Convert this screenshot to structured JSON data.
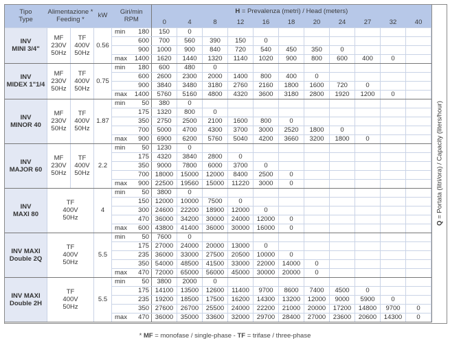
{
  "header": {
    "type_it": "Tipo",
    "type_en": "Type",
    "feeding_it": "Alimentazione *",
    "feeding_en": "Feeding *",
    "kw": "kW",
    "rpm_it": "Giri/min",
    "rpm_en": "RPM",
    "head_prefix": "H",
    "head_title": " = Prevalenza (metri) / Head (meters)",
    "heads": [
      "0",
      "4",
      "8",
      "12",
      "16",
      "18",
      "20",
      "24",
      "27",
      "32",
      "40"
    ]
  },
  "side_label": {
    "prefix": "Q",
    "text": " = Portata (litri/ora) / Capacity (liters/hour)"
  },
  "footnote": {
    "star": "* ",
    "mf": "MF",
    "mf_text": " = monofase / single-phase - ",
    "tf": "TF",
    "tf_text": " = trifase / three-phase"
  },
  "colors": {
    "header_bg": "#b7c8e8",
    "type_bg": "#e3e8f4"
  },
  "models": [
    {
      "name": [
        "INV",
        "MINI 3/4\""
      ],
      "mf": [
        "MF",
        "230V",
        "50Hz"
      ],
      "tf": [
        "TF",
        "400V",
        "50Hz"
      ],
      "kw": "0.56",
      "rows": [
        {
          "label": "min",
          "rpm": "180",
          "values": [
            "150",
            "0"
          ]
        },
        {
          "label": "",
          "rpm": "600",
          "values": [
            "700",
            "560",
            "390",
            "150",
            "0"
          ]
        },
        {
          "label": "",
          "rpm": "900",
          "values": [
            "1000",
            "900",
            "840",
            "720",
            "540",
            "450",
            "350",
            "0"
          ]
        },
        {
          "label": "max",
          "rpm": "1400",
          "values": [
            "1620",
            "1440",
            "1320",
            "1140",
            "1020",
            "900",
            "800",
            "600",
            "400",
            "0"
          ]
        }
      ]
    },
    {
      "name": [
        "INV",
        "MIDEX 1\"1/4"
      ],
      "mf": [
        "MF",
        "230V",
        "50Hz"
      ],
      "tf": [
        "TF",
        "400V",
        "50Hz"
      ],
      "kw": "0.75",
      "rows": [
        {
          "label": "min",
          "rpm": "180",
          "values": [
            "600",
            "480",
            "0"
          ]
        },
        {
          "label": "",
          "rpm": "600",
          "values": [
            "2600",
            "2300",
            "2000",
            "1400",
            "800",
            "400",
            "0"
          ]
        },
        {
          "label": "",
          "rpm": "900",
          "values": [
            "3840",
            "3480",
            "3180",
            "2760",
            "2160",
            "1800",
            "1600",
            "720",
            "0"
          ]
        },
        {
          "label": "max",
          "rpm": "1400",
          "values": [
            "5760",
            "5160",
            "4800",
            "4320",
            "3600",
            "3180",
            "2800",
            "1920",
            "1200",
            "0"
          ]
        }
      ]
    },
    {
      "name": [
        "INV",
        "MINOR 40"
      ],
      "mf": [
        "MF",
        "230V",
        "50Hz"
      ],
      "tf": [
        "TF",
        "400V",
        "50Hz"
      ],
      "kw": "1.87",
      "rows": [
        {
          "label": "min",
          "rpm": "50",
          "values": [
            "380",
            "0"
          ]
        },
        {
          "label": "",
          "rpm": "175",
          "values": [
            "1320",
            "800",
            "0"
          ]
        },
        {
          "label": "",
          "rpm": "350",
          "values": [
            "2750",
            "2500",
            "2100",
            "1600",
            "800",
            "0"
          ]
        },
        {
          "label": "",
          "rpm": "700",
          "values": [
            "5000",
            "4700",
            "4300",
            "3700",
            "3000",
            "2520",
            "1800",
            "0"
          ]
        },
        {
          "label": "max",
          "rpm": "900",
          "values": [
            "6900",
            "6200",
            "5760",
            "5040",
            "4200",
            "3660",
            "3200",
            "1800",
            "0"
          ]
        }
      ]
    },
    {
      "name": [
        "INV",
        "MAJOR 60"
      ],
      "mf": [
        "MF",
        "230V",
        "50Hz"
      ],
      "tf": [
        "TF",
        "400V",
        "50Hz"
      ],
      "kw": "2.2",
      "rows": [
        {
          "label": "min",
          "rpm": "50",
          "values": [
            "1230",
            "0"
          ]
        },
        {
          "label": "",
          "rpm": "175",
          "values": [
            "4320",
            "3840",
            "2800",
            "0"
          ]
        },
        {
          "label": "",
          "rpm": "350",
          "values": [
            "9000",
            "7800",
            "6000",
            "3700",
            "0"
          ]
        },
        {
          "label": "",
          "rpm": "700",
          "values": [
            "18000",
            "15000",
            "12000",
            "8400",
            "2500",
            "0"
          ]
        },
        {
          "label": "max",
          "rpm": "900",
          "values": [
            "22500",
            "19560",
            "15000",
            "11220",
            "3000",
            "0"
          ]
        }
      ]
    },
    {
      "name": [
        "INV",
        "MAXI 80"
      ],
      "mf": null,
      "tf": [
        "TF",
        "400V",
        "50Hz"
      ],
      "kw": "4",
      "rows": [
        {
          "label": "min",
          "rpm": "50",
          "values": [
            "3800",
            "0"
          ]
        },
        {
          "label": "",
          "rpm": "150",
          "values": [
            "12000",
            "10000",
            "7500",
            "0"
          ]
        },
        {
          "label": "",
          "rpm": "300",
          "values": [
            "24600",
            "22200",
            "18900",
            "12000",
            "0"
          ]
        },
        {
          "label": "",
          "rpm": "470",
          "values": [
            "36000",
            "34200",
            "30000",
            "24000",
            "12000",
            "0"
          ]
        },
        {
          "label": "max",
          "rpm": "600",
          "values": [
            "43800",
            "41400",
            "36000",
            "30000",
            "16000",
            "0"
          ]
        }
      ]
    },
    {
      "name": [
        "INV MAXI",
        "Double 2Q"
      ],
      "mf": null,
      "tf": [
        "TF",
        "400V",
        "50Hz"
      ],
      "kw": "5.5",
      "rows": [
        {
          "label": "min",
          "rpm": "50",
          "values": [
            "7600",
            "0"
          ]
        },
        {
          "label": "",
          "rpm": "175",
          "values": [
            "27000",
            "24000",
            "20000",
            "13000",
            "0"
          ]
        },
        {
          "label": "",
          "rpm": "235",
          "values": [
            "36000",
            "33000",
            "27500",
            "20500",
            "10000",
            "0"
          ]
        },
        {
          "label": "",
          "rpm": "350",
          "values": [
            "54000",
            "48500",
            "41500",
            "33000",
            "22000",
            "14000",
            "0"
          ]
        },
        {
          "label": "max",
          "rpm": "470",
          "values": [
            "72000",
            "65000",
            "56000",
            "45000",
            "30000",
            "20000",
            "0"
          ]
        }
      ]
    },
    {
      "name": [
        "INV MAXI",
        "Double 2H"
      ],
      "mf": null,
      "tf": [
        "TF",
        "400V",
        "50Hz"
      ],
      "kw": "5.5",
      "rows": [
        {
          "label": "min",
          "rpm": "50",
          "values": [
            "3800",
            "2000",
            "0"
          ]
        },
        {
          "label": "",
          "rpm": "175",
          "values": [
            "14100",
            "13500",
            "12600",
            "11400",
            "9700",
            "8600",
            "7400",
            "4500",
            "0"
          ]
        },
        {
          "label": "",
          "rpm": "235",
          "values": [
            "19200",
            "18500",
            "17500",
            "16200",
            "14300",
            "13200",
            "12000",
            "9000",
            "5900",
            "0"
          ]
        },
        {
          "label": "",
          "rpm": "350",
          "values": [
            "27600",
            "26700",
            "25500",
            "24000",
            "22200",
            "21000",
            "20000",
            "17200",
            "14800",
            "9700",
            "0"
          ]
        },
        {
          "label": "max",
          "rpm": "470",
          "values": [
            "36000",
            "35000",
            "33600",
            "32000",
            "29700",
            "28400",
            "27000",
            "23600",
            "20600",
            "14300",
            "0"
          ]
        }
      ]
    }
  ]
}
